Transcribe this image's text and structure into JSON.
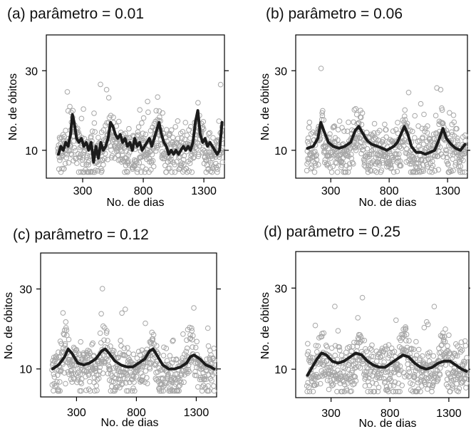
{
  "chart_data": [
    {
      "type": "scatter",
      "title": "(a) parâmetro = 0.01",
      "xlabel": "No. de dias",
      "ylabel": "No. de óbitos",
      "xlim": [
        0,
        1470
      ],
      "ylim": [
        3,
        39
      ],
      "xticks": [
        300,
        800,
        1300
      ],
      "yticks": [
        10,
        30
      ],
      "grid": false,
      "point_color": "#a6a6a6",
      "line_color": "#1c1c1c",
      "smooth": {
        "name": "",
        "x": [
          100,
          120,
          140,
          160,
          180,
          200,
          215,
          230,
          250,
          270,
          290,
          310,
          330,
          350,
          370,
          390,
          410,
          430,
          450,
          470,
          490,
          510,
          530,
          550,
          570,
          590,
          610,
          630,
          650,
          670,
          690,
          710,
          730,
          750,
          770,
          790,
          810,
          830,
          850,
          870,
          890,
          910,
          930,
          950,
          970,
          990,
          1010,
          1030,
          1050,
          1070,
          1090,
          1110,
          1130,
          1150,
          1170,
          1190,
          1210,
          1230,
          1250,
          1270,
          1290,
          1310,
          1330,
          1350,
          1370,
          1390,
          1410,
          1430,
          1450
        ],
        "y": [
          9,
          11,
          10,
          12,
          11,
          14,
          19,
          17,
          13,
          12,
          13,
          11,
          12,
          10,
          12,
          7,
          11,
          8,
          12,
          10,
          11,
          13,
          17,
          16,
          14,
          13,
          14,
          12,
          13,
          11,
          12,
          10,
          13,
          11,
          12,
          10,
          11,
          12,
          13,
          11,
          13,
          15,
          17,
          14,
          12,
          11,
          9,
          10,
          9,
          10,
          9,
          10,
          11,
          10,
          11,
          10,
          12,
          17,
          20,
          14,
          12,
          13,
          11,
          12,
          11,
          10,
          9,
          10,
          17
        ]
      },
      "points_seed": 11
    },
    {
      "type": "scatter",
      "title": "(b) parâmetro = 0.06",
      "xlabel": "No. de dias",
      "ylabel": "No. de óbitos",
      "xlim": [
        0,
        1470
      ],
      "ylim": [
        3,
        39
      ],
      "xticks": [
        300,
        800,
        1300
      ],
      "yticks": [
        10,
        30
      ],
      "grid": false,
      "point_color": "#a6a6a6",
      "line_color": "#1c1c1c",
      "smooth": {
        "name": "",
        "x": [
          100,
          150,
          190,
          215,
          240,
          280,
          320,
          370,
          420,
          470,
          510,
          540,
          570,
          610,
          650,
          700,
          740,
          780,
          810,
          840,
          870,
          900,
          930,
          960,
          990,
          1030,
          1070,
          1110,
          1150,
          1190,
          1230,
          1260,
          1290,
          1330,
          1370,
          1410,
          1450
        ],
        "y": [
          10.5,
          11,
          13,
          17,
          15,
          12,
          11,
          10.5,
          11,
          12,
          15,
          16,
          14.5,
          12.5,
          11.5,
          11,
          10.5,
          10,
          10.5,
          11,
          12,
          14,
          16,
          14,
          11,
          9.5,
          9.5,
          9,
          9.5,
          10,
          13,
          15.5,
          13,
          11.5,
          10.5,
          10,
          11.5
        ]
      },
      "points_seed": 23
    },
    {
      "type": "scatter",
      "title": "(c) parâmetro = 0.12",
      "xlabel": "No. de dias",
      "ylabel": "No. de óbitos",
      "xlim": [
        0,
        1470
      ],
      "ylim": [
        3,
        39
      ],
      "xticks": [
        300,
        800,
        1300
      ],
      "yticks": [
        10,
        30
      ],
      "grid": false,
      "point_color": "#a6a6a6",
      "line_color": "#1c1c1c",
      "smooth": {
        "name": "",
        "x": [
          100,
          150,
          200,
          230,
          260,
          310,
          360,
          410,
          460,
          510,
          540,
          570,
          620,
          670,
          720,
          770,
          820,
          870,
          910,
          940,
          970,
          1020,
          1070,
          1120,
          1170,
          1220,
          1250,
          1280,
          1330,
          1380,
          1420,
          1450
        ],
        "y": [
          10,
          11,
          13,
          15,
          14,
          11.5,
          11,
          11.5,
          12.5,
          14.5,
          15,
          14,
          12,
          11,
          10.5,
          10.5,
          11.5,
          12.5,
          14.5,
          15,
          13.5,
          11,
          10,
          10,
          10.5,
          11.5,
          13,
          13.5,
          12.5,
          11,
          10.5,
          10
        ]
      },
      "points_seed": 37
    },
    {
      "type": "scatter",
      "title": "(d) parâmetro = 0.25",
      "xlabel": "No. de dias",
      "ylabel": "No. de óbitos",
      "xlim": [
        0,
        1470
      ],
      "ylim": [
        3,
        39
      ],
      "xticks": [
        300,
        800,
        1300
      ],
      "yticks": [
        10,
        30
      ],
      "grid": false,
      "point_color": "#a6a6a6",
      "line_color": "#1c1c1c",
      "smooth": {
        "name": "",
        "x": [
          100,
          140,
          180,
          220,
          260,
          310,
          360,
          410,
          460,
          510,
          560,
          610,
          660,
          710,
          760,
          810,
          860,
          910,
          960,
          1010,
          1060,
          1110,
          1160,
          1210,
          1260,
          1310,
          1360,
          1410,
          1450
        ],
        "y": [
          8.5,
          10.5,
          12.5,
          14,
          13.5,
          12,
          11.5,
          12,
          13,
          14,
          13.5,
          12,
          11,
          10.5,
          10.5,
          11.5,
          12.5,
          13.5,
          13,
          11.5,
          10.5,
          10,
          10.5,
          11.5,
          12,
          12,
          11,
          10,
          9.5
        ]
      },
      "points_seed": 53
    }
  ]
}
